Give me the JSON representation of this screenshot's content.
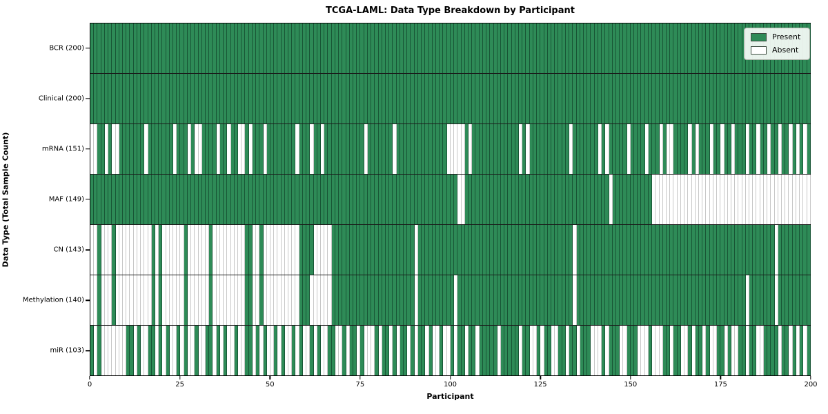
{
  "chart_data": {
    "type": "heatmap",
    "title": "TCGA-LAML: Data Type Breakdown by Participant",
    "xlabel": "Participant",
    "ylabel": "Data Type (Total Sample Count)",
    "x_range": [
      0,
      200
    ],
    "n_participants": 200,
    "x_tick_labels": [
      "0",
      "25",
      "50",
      "75",
      "100",
      "125",
      "150",
      "175",
      "200"
    ],
    "grid": false,
    "legend_position": "upper right",
    "legend_items": [
      {
        "label": "Present",
        "color": "#2e8b57"
      },
      {
        "label": "Absent",
        "color": "#ffffff"
      }
    ],
    "colors": {
      "present": "#2e8b57",
      "absent": "#ffffff"
    },
    "cell_values": {
      "present": 1,
      "absent": 0
    },
    "rows": [
      {
        "label": "BCR (200)",
        "name": "BCR",
        "count": 200,
        "pattern": "11111111111111111111111111111111111111111111111111111111111111111111111111111111111111111111111111111111111111111111111111111111111111111111111111111111111111111111111111111111111111111111111111111111"
      },
      {
        "label": "Clinical (200)",
        "name": "Clinical",
        "count": 200,
        "pattern": "11111111111111111111111111111111111111111111111111111111111111111111111111111111111111111111111111111111111111111111111111111111111111111111111111111111111111111111111111111111111111111111111111111111"
      },
      {
        "label": "mRNA (151)",
        "name": "mRNA",
        "count": 151,
        "pattern": "00110100111111101111111011101001111011011001011101111111101110110111111111110111111101111111111111100000101111111111111010111111111110111111101011111011110111010011110101110110110111011011011011010101"
      },
      {
        "label": "MAF (149)",
        "name": "MAF",
        "count": 149,
        "pattern": "11111111111111111111111111111111111111111111111111111111111111111111111111111111111111111111111111111100111111111111111111111111111111111111111101111111111100000000000000000000000000000000000000000000"
      },
      {
        "label": "CN (143)",
        "name": "CN",
        "count": 143,
        "pattern": "00100010000000000101000000100000010000000001100100000000001111000001111111111111111111111101111111111111111111111111111111111111111111011111111111111111111111111111111111111111111111111111110111111111"
      },
      {
        "label": "Methylation (140)",
        "name": "Methylation",
        "count": 140,
        "pattern": "00100010000000000101000000100000010000000001100100000000001110000001111111111111111111111101111111111011111111111111111111111111111111011111111111111111111111111111111111111111111111011111110111111111"
      },
      {
        "label": "miR (103)",
        "name": "miR",
        "count": 103,
        "pattern": "10100000001101001101010010100100110101001001101010010100101001010011001011010001011010110101101001001011011011111011111011001011001101101110001011100111000100011011001011010011010011011001111011010101"
      }
    ]
  }
}
